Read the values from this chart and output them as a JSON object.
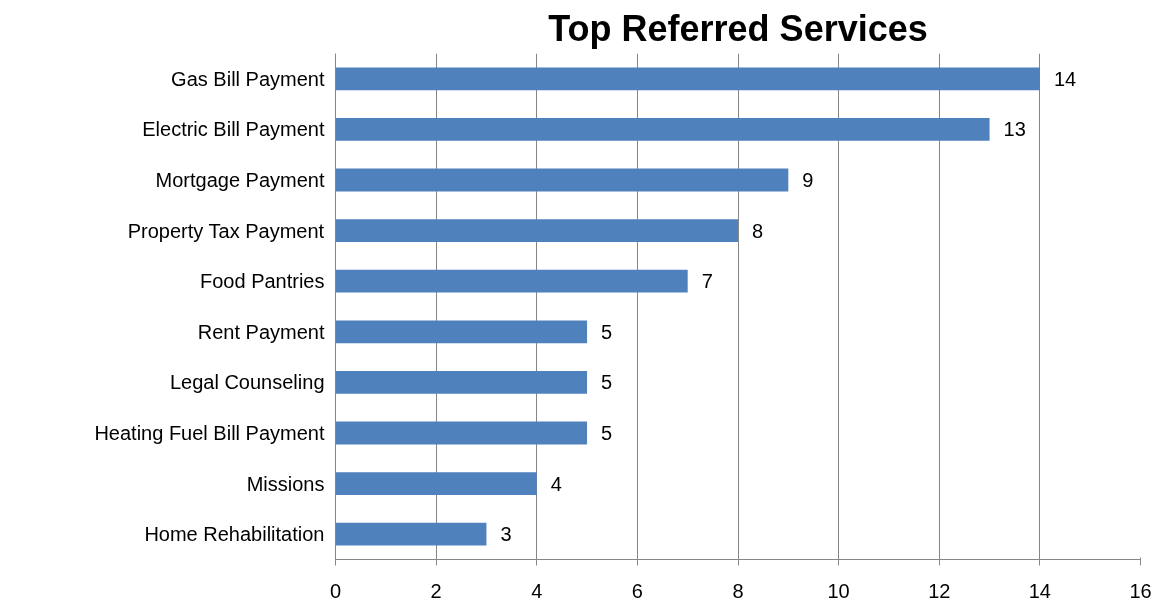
{
  "chart_data": {
    "type": "bar",
    "orientation": "horizontal",
    "title": "Top Referred Services",
    "categories": [
      "Gas Bill Payment",
      "Electric Bill Payment",
      "Mortgage Payment",
      "Property Tax Payment",
      "Food Pantries",
      "Rent Payment",
      "Legal Counseling",
      "Heating Fuel Bill Payment",
      "Missions",
      "Home Rehabilitation"
    ],
    "values": [
      14,
      13,
      9,
      8,
      7,
      5,
      5,
      5,
      4,
      3
    ],
    "color": "#4f81bd",
    "xlim": [
      0,
      16
    ],
    "xticks": [
      0,
      2,
      4,
      6,
      8,
      10,
      12,
      14,
      16
    ],
    "grid": "x",
    "data_labels": true
  }
}
